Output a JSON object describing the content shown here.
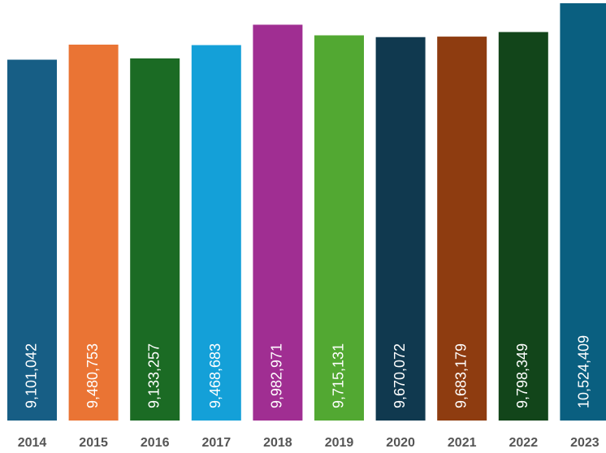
{
  "chart_data": {
    "type": "bar",
    "categories": [
      "2014",
      "2015",
      "2016",
      "2017",
      "2018",
      "2019",
      "2020",
      "2021",
      "2022",
      "2023"
    ],
    "values": [
      9101042,
      9480753,
      9133257,
      9468683,
      9982971,
      9715131,
      9670072,
      9683179,
      9798349,
      10524409
    ],
    "value_labels": [
      "9,101,042",
      "9,480,753",
      "9,133,257",
      "9,468,683",
      "9,982,971",
      "9,715,131",
      "9,670,072",
      "9,683,179",
      "9,798,349",
      "10,524,409"
    ],
    "colors": [
      "#175e85",
      "#ea7434",
      "#1b6b24",
      "#14a0d8",
      "#a02e92",
      "#52a832",
      "#10394f",
      "#8e3c10",
      "#12451a",
      "#0a5f80"
    ]
  }
}
